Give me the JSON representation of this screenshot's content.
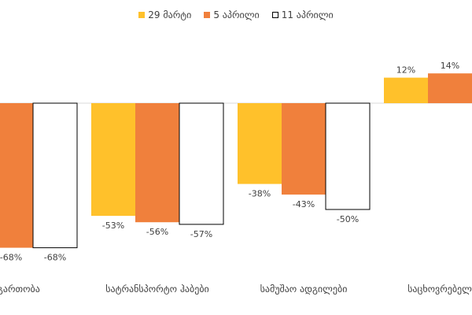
{
  "legend": [
    {
      "name": "29 მარტი",
      "color": "#FFC12B",
      "stroke": "#FFC12B"
    },
    {
      "name": "5 აპრილი",
      "color": "#F0803C",
      "stroke": "#F0803C"
    },
    {
      "name": "11 აპრილი",
      "color": "#FFFFFF",
      "stroke": "#000000"
    }
  ],
  "chart_data": {
    "type": "bar",
    "categories": [
      "და გართობა",
      "სატრანსპორტო ჰაბები",
      "სამუშაო ადგილები",
      "საცხოვრებელი ად"
    ],
    "series": [
      {
        "name": "29 მარტი",
        "values": [
          null,
          -53,
          -38,
          12
        ],
        "labels": [
          "",
          "-53%",
          "-38%",
          "12%"
        ]
      },
      {
        "name": "5 აპრილი",
        "values": [
          -68,
          -56,
          -43,
          14
        ],
        "labels": [
          "-68%",
          "-56%",
          "-43%",
          "14%"
        ]
      },
      {
        "name": "11 აპრილი",
        "values": [
          -68,
          -57,
          -50,
          null
        ],
        "labels": [
          "-68%",
          "-57%",
          "-50%",
          ""
        ]
      }
    ],
    "grid": false,
    "legend_position": "top-center"
  }
}
